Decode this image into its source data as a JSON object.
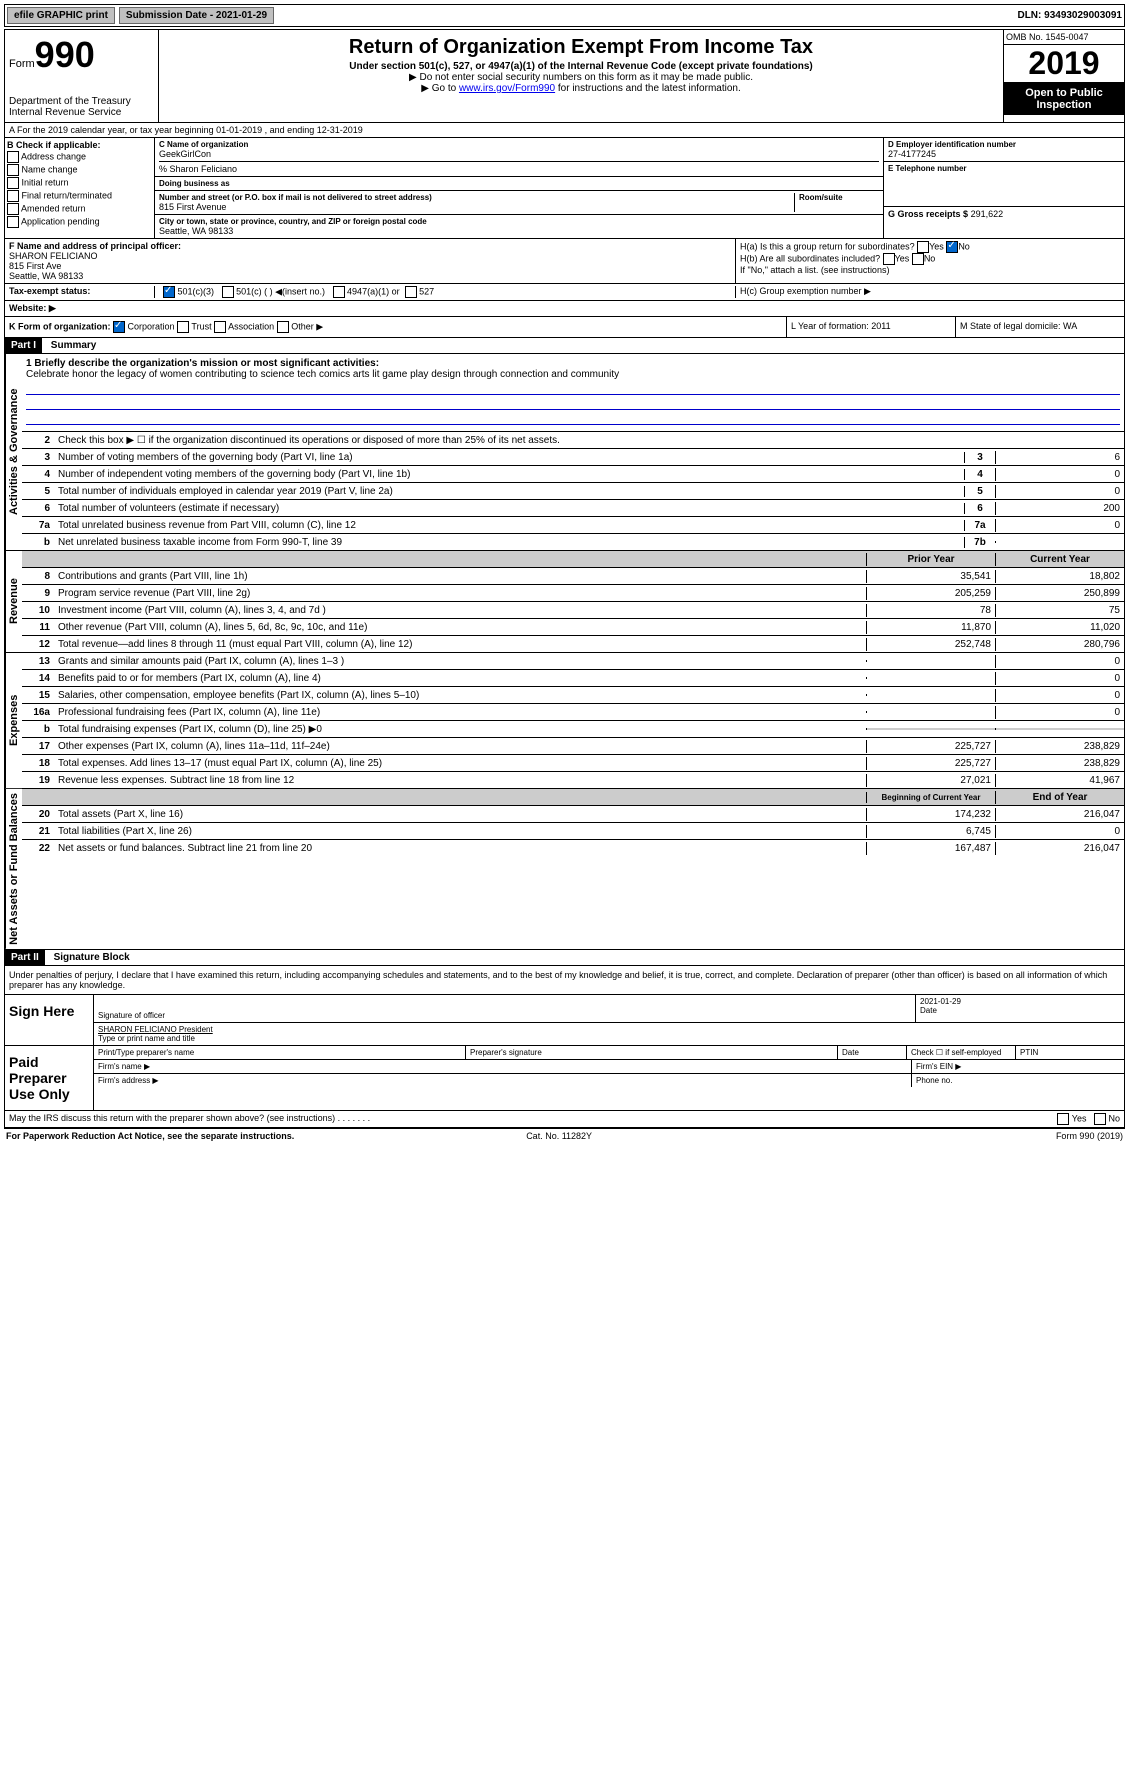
{
  "topbar": {
    "efile": "efile GRAPHIC print",
    "submission": "Submission Date - 2021-01-29",
    "dln": "DLN: 93493029003091"
  },
  "header": {
    "form_label": "Form",
    "form_number": "990",
    "title": "Return of Organization Exempt From Income Tax",
    "subtitle": "Under section 501(c), 527, or 4947(a)(1) of the Internal Revenue Code (except private foundations)",
    "note1": "▶ Do not enter social security numbers on this form as it may be made public.",
    "note2_pre": "▶ Go to ",
    "note2_link": "www.irs.gov/Form990",
    "note2_post": " for instructions and the latest information.",
    "dept": "Department of the Treasury",
    "irs": "Internal Revenue Service",
    "omb": "OMB No. 1545-0047",
    "year": "2019",
    "open": "Open to Public Inspection"
  },
  "rowA": "A For the 2019 calendar year, or tax year beginning 01-01-2019    , and ending 12-31-2019",
  "boxB": {
    "header": "B Check if applicable:",
    "opts": [
      "Address change",
      "Name change",
      "Initial return",
      "Final return/terminated",
      "Amended return",
      "Application pending"
    ]
  },
  "boxC": {
    "name_label": "C Name of organization",
    "name": "GeekGirlCon",
    "care_of": "% Sharon Feliciano",
    "dba_label": "Doing business as",
    "addr_label": "Number and street (or P.O. box if mail is not delivered to street address)",
    "room_label": "Room/suite",
    "addr": "815 First Avenue",
    "city_label": "City or town, state or province, country, and ZIP or foreign postal code",
    "city": "Seattle, WA  98133"
  },
  "boxD": {
    "label": "D Employer identification number",
    "ein": "27-4177245"
  },
  "boxE": {
    "label": "E Telephone number"
  },
  "boxG": {
    "label": "G Gross receipts $",
    "value": "291,622"
  },
  "boxF": {
    "label": "F  Name and address of principal officer:",
    "name": "SHARON FELICIANO",
    "addr1": "815 First Ave",
    "addr2": "Seattle, WA  98133"
  },
  "boxH": {
    "a": "H(a)  Is this a group return for subordinates?",
    "b": "H(b)  Are all subordinates included?",
    "b_note": "If \"No,\" attach a list. (see instructions)",
    "c": "H(c)  Group exemption number ▶",
    "yes": "Yes",
    "no": "No"
  },
  "status": {
    "label": "Tax-exempt status:",
    "opt1": "501(c)(3)",
    "opt2": "501(c) (   ) ◀(insert no.)",
    "opt3": "4947(a)(1) or",
    "opt4": "527"
  },
  "website": {
    "label": "Website: ▶"
  },
  "rowK": {
    "k": "K Form of organization:",
    "corp": "Corporation",
    "trust": "Trust",
    "assoc": "Association",
    "other": "Other ▶",
    "l": "L Year of formation: 2011",
    "m": "M State of legal domicile: WA"
  },
  "part1": {
    "header": "Part I",
    "title": "Summary"
  },
  "section_labels": {
    "gov": "Activities & Governance",
    "rev": "Revenue",
    "exp": "Expenses",
    "net": "Net Assets or Fund Balances"
  },
  "summary": {
    "mission_label": "1  Briefly describe the organization's mission or most significant activities:",
    "mission": "Celebrate honor the legacy of women contributing to science tech comics arts lit game play design through connection and community",
    "line2": "Check this box ▶ ☐  if the organization discontinued its operations or disposed of more than 25% of its net assets.",
    "rows": [
      {
        "n": "3",
        "label": "Number of voting members of the governing body (Part VI, line 1a)",
        "col": "3",
        "v": "6"
      },
      {
        "n": "4",
        "label": "Number of independent voting members of the governing body (Part VI, line 1b)",
        "col": "4",
        "v": "0"
      },
      {
        "n": "5",
        "label": "Total number of individuals employed in calendar year 2019 (Part V, line 2a)",
        "col": "5",
        "v": "0"
      },
      {
        "n": "6",
        "label": "Total number of volunteers (estimate if necessary)",
        "col": "6",
        "v": "200"
      },
      {
        "n": "7a",
        "label": "Total unrelated business revenue from Part VIII, column (C), line 12",
        "col": "7a",
        "v": "0"
      },
      {
        "n": "b",
        "label": "Net unrelated business taxable income from Form 990-T, line 39",
        "col": "7b",
        "v": ""
      }
    ],
    "col_hdr1": "Prior Year",
    "col_hdr2": "Current Year",
    "revenue": [
      {
        "n": "8",
        "label": "Contributions and grants (Part VIII, line 1h)",
        "p": "35,541",
        "c": "18,802"
      },
      {
        "n": "9",
        "label": "Program service revenue (Part VIII, line 2g)",
        "p": "205,259",
        "c": "250,899"
      },
      {
        "n": "10",
        "label": "Investment income (Part VIII, column (A), lines 3, 4, and 7d )",
        "p": "78",
        "c": "75"
      },
      {
        "n": "11",
        "label": "Other revenue (Part VIII, column (A), lines 5, 6d, 8c, 9c, 10c, and 11e)",
        "p": "11,870",
        "c": "11,020"
      },
      {
        "n": "12",
        "label": "Total revenue—add lines 8 through 11 (must equal Part VIII, column (A), line 12)",
        "p": "252,748",
        "c": "280,796"
      }
    ],
    "expenses": [
      {
        "n": "13",
        "label": "Grants and similar amounts paid (Part IX, column (A), lines 1–3 )",
        "p": "",
        "c": "0"
      },
      {
        "n": "14",
        "label": "Benefits paid to or for members (Part IX, column (A), line 4)",
        "p": "",
        "c": "0"
      },
      {
        "n": "15",
        "label": "Salaries, other compensation, employee benefits (Part IX, column (A), lines 5–10)",
        "p": "",
        "c": "0"
      },
      {
        "n": "16a",
        "label": "Professional fundraising fees (Part IX, column (A), line 11e)",
        "p": "",
        "c": "0"
      },
      {
        "n": "b",
        "label": "Total fundraising expenses (Part IX, column (D), line 25) ▶0",
        "p": "shaded",
        "c": "shaded"
      },
      {
        "n": "17",
        "label": "Other expenses (Part IX, column (A), lines 11a–11d, 11f–24e)",
        "p": "225,727",
        "c": "238,829"
      },
      {
        "n": "18",
        "label": "Total expenses. Add lines 13–17 (must equal Part IX, column (A), line 25)",
        "p": "225,727",
        "c": "238,829"
      },
      {
        "n": "19",
        "label": "Revenue less expenses. Subtract line 18 from line 12",
        "p": "27,021",
        "c": "41,967"
      }
    ],
    "net_hdr1": "Beginning of Current Year",
    "net_hdr2": "End of Year",
    "net": [
      {
        "n": "20",
        "label": "Total assets (Part X, line 16)",
        "p": "174,232",
        "c": "216,047"
      },
      {
        "n": "21",
        "label": "Total liabilities (Part X, line 26)",
        "p": "6,745",
        "c": "0"
      },
      {
        "n": "22",
        "label": "Net assets or fund balances. Subtract line 21 from line 20",
        "p": "167,487",
        "c": "216,047"
      }
    ]
  },
  "part2": {
    "header": "Part II",
    "title": "Signature Block",
    "perjury": "Under penalties of perjury, I declare that I have examined this return, including accompanying schedules and statements, and to the best of my knowledge and belief, it is true, correct, and complete. Declaration of preparer (other than officer) is based on all information of which preparer has any knowledge."
  },
  "sign": {
    "here": "Sign Here",
    "sig_officer": "Signature of officer",
    "date": "2021-01-29",
    "date_label": "Date",
    "name": "SHARON FELICIANO  President",
    "type_label": "Type or print name and title"
  },
  "paid": {
    "label": "Paid Preparer Use Only",
    "print_name": "Print/Type preparer's name",
    "prep_sig": "Preparer's signature",
    "date": "Date",
    "check_self": "Check ☐ if self-employed",
    "ptin": "PTIN",
    "firm_name": "Firm's name    ▶",
    "firm_ein": "Firm's EIN ▶",
    "firm_addr": "Firm's address ▶",
    "phone": "Phone no."
  },
  "discuss": "May the IRS discuss this return with the preparer shown above? (see instructions)",
  "footer": {
    "left": "For Paperwork Reduction Act Notice, see the separate instructions.",
    "mid": "Cat. No. 11282Y",
    "right": "Form 990 (2019)"
  }
}
